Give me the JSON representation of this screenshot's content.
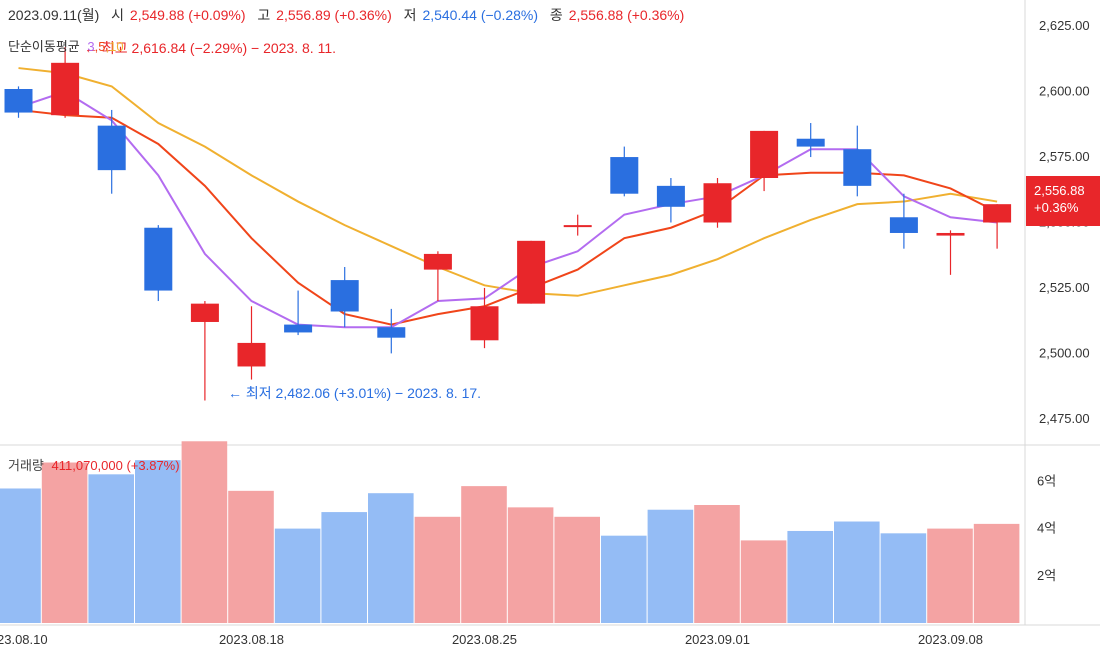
{
  "header": {
    "date": "2023.09.11(월)",
    "open_label": "시",
    "open_value": "2,549.88 (+0.09%)",
    "high_label": "고",
    "high_value": "2,556.89 (+0.36%)",
    "low_label": "저",
    "low_value": "2,540.44 (−0.28%)",
    "close_label": "종",
    "close_value": "2,556.88 (+0.36%)"
  },
  "moving_average": {
    "label": "단순이동평균",
    "periods": [
      "3",
      "5",
      "10"
    ],
    "colors": {
      "ma3": "#b36cf0",
      "ma5": "#f0451a",
      "ma10": "#f0b030"
    }
  },
  "annotations": {
    "high": "← 최고 2,616.84 (−2.29%) − 2023. 8. 11.",
    "low": "← 최저 2,482.06 (+3.01%) − 2023. 8. 17."
  },
  "current_badge": {
    "price": "2,556.88",
    "change": "+0.36%"
  },
  "volume": {
    "label": "거래량",
    "value": "411,070,000 (+3.87%)"
  },
  "colors": {
    "up": "#e8262a",
    "down": "#2a6fe0",
    "vol_up": "#f4a3a3",
    "vol_down": "#94bcf5"
  },
  "chart_data": {
    "type": "candlestick",
    "price_axis": {
      "ticks": [
        "2,475.00",
        "2,500.00",
        "2,525.00",
        "2,550.00",
        "2,575.00",
        "2,600.00",
        "2,625.00"
      ],
      "range": [
        2465,
        2635
      ]
    },
    "volume_axis": {
      "ticks": [
        "2억",
        "4억",
        "6억"
      ],
      "range_eok": [
        0,
        7.5
      ]
    },
    "x_labels": [
      {
        "index": 0,
        "text": "23.08.10"
      },
      {
        "index": 5,
        "text": "2023.08.18"
      },
      {
        "index": 10,
        "text": "2023.08.25"
      },
      {
        "index": 15,
        "text": "2023.09.01"
      },
      {
        "index": 20,
        "text": "2023.09.08"
      }
    ],
    "candles": [
      {
        "open": 2601,
        "high": 2602,
        "low": 2590,
        "close": 2592
      },
      {
        "open": 2591,
        "high": 2617,
        "low": 2590,
        "close": 2611
      },
      {
        "open": 2587,
        "high": 2593,
        "low": 2561,
        "close": 2570
      },
      {
        "open": 2548,
        "high": 2549,
        "low": 2520,
        "close": 2524
      },
      {
        "open": 2512,
        "high": 2520,
        "low": 2482,
        "close": 2519
      },
      {
        "open": 2495,
        "high": 2518,
        "low": 2490,
        "close": 2504
      },
      {
        "open": 2511,
        "high": 2524,
        "low": 2507,
        "close": 2508
      },
      {
        "open": 2528,
        "high": 2533,
        "low": 2510,
        "close": 2516
      },
      {
        "open": 2510,
        "high": 2517,
        "low": 2500,
        "close": 2506
      },
      {
        "open": 2532,
        "high": 2539,
        "low": 2520,
        "close": 2538
      },
      {
        "open": 2505,
        "high": 2525,
        "low": 2502,
        "close": 2518
      },
      {
        "open": 2519,
        "high": 2543,
        "low": 2519,
        "close": 2543
      },
      {
        "open": 2549,
        "high": 2553,
        "low": 2545,
        "close": 2549
      },
      {
        "open": 2575,
        "high": 2579,
        "low": 2560,
        "close": 2561
      },
      {
        "open": 2564,
        "high": 2567,
        "low": 2550,
        "close": 2556
      },
      {
        "open": 2550,
        "high": 2567,
        "low": 2548,
        "close": 2565
      },
      {
        "open": 2567,
        "high": 2585,
        "low": 2562,
        "close": 2585
      },
      {
        "open": 2582,
        "high": 2588,
        "low": 2575,
        "close": 2579
      },
      {
        "open": 2578,
        "high": 2587,
        "low": 2560,
        "close": 2564
      },
      {
        "open": 2552,
        "high": 2561,
        "low": 2540,
        "close": 2546
      },
      {
        "open": 2545,
        "high": 2547,
        "low": 2530,
        "close": 2546
      },
      {
        "open": 2550,
        "high": 2557,
        "low": 2540,
        "close": 2557
      }
    ],
    "ma3": [
      2594,
      2600,
      2589,
      2568,
      2538,
      2520,
      2511,
      2510,
      2510,
      2520,
      2521,
      2533,
      2539,
      2553,
      2557,
      2560,
      2568,
      2578,
      2578,
      2560,
      2552,
      2550
    ],
    "ma5": [
      2593,
      2591,
      2590,
      2580,
      2564,
      2544,
      2527,
      2515,
      2511,
      2515,
      2518,
      2525,
      2532,
      2544,
      2548,
      2555,
      2568,
      2569,
      2569,
      2568,
      2563,
      2554
    ],
    "ma10": [
      2609,
      2607,
      2602,
      2588,
      2579,
      2568,
      2558,
      2549,
      2541,
      2533,
      2526,
      2523,
      2522,
      2526,
      2530,
      2536,
      2544,
      2551,
      2557,
      2558,
      2561,
      2558
    ],
    "volume_eok": [
      5.7,
      6.8,
      6.3,
      6.9,
      7.7,
      5.6,
      4.0,
      4.7,
      5.5,
      4.5,
      5.8,
      4.9,
      4.5,
      3.7,
      4.8,
      5.0,
      3.5,
      3.9,
      4.3,
      3.8,
      4.0,
      4.2
    ]
  }
}
